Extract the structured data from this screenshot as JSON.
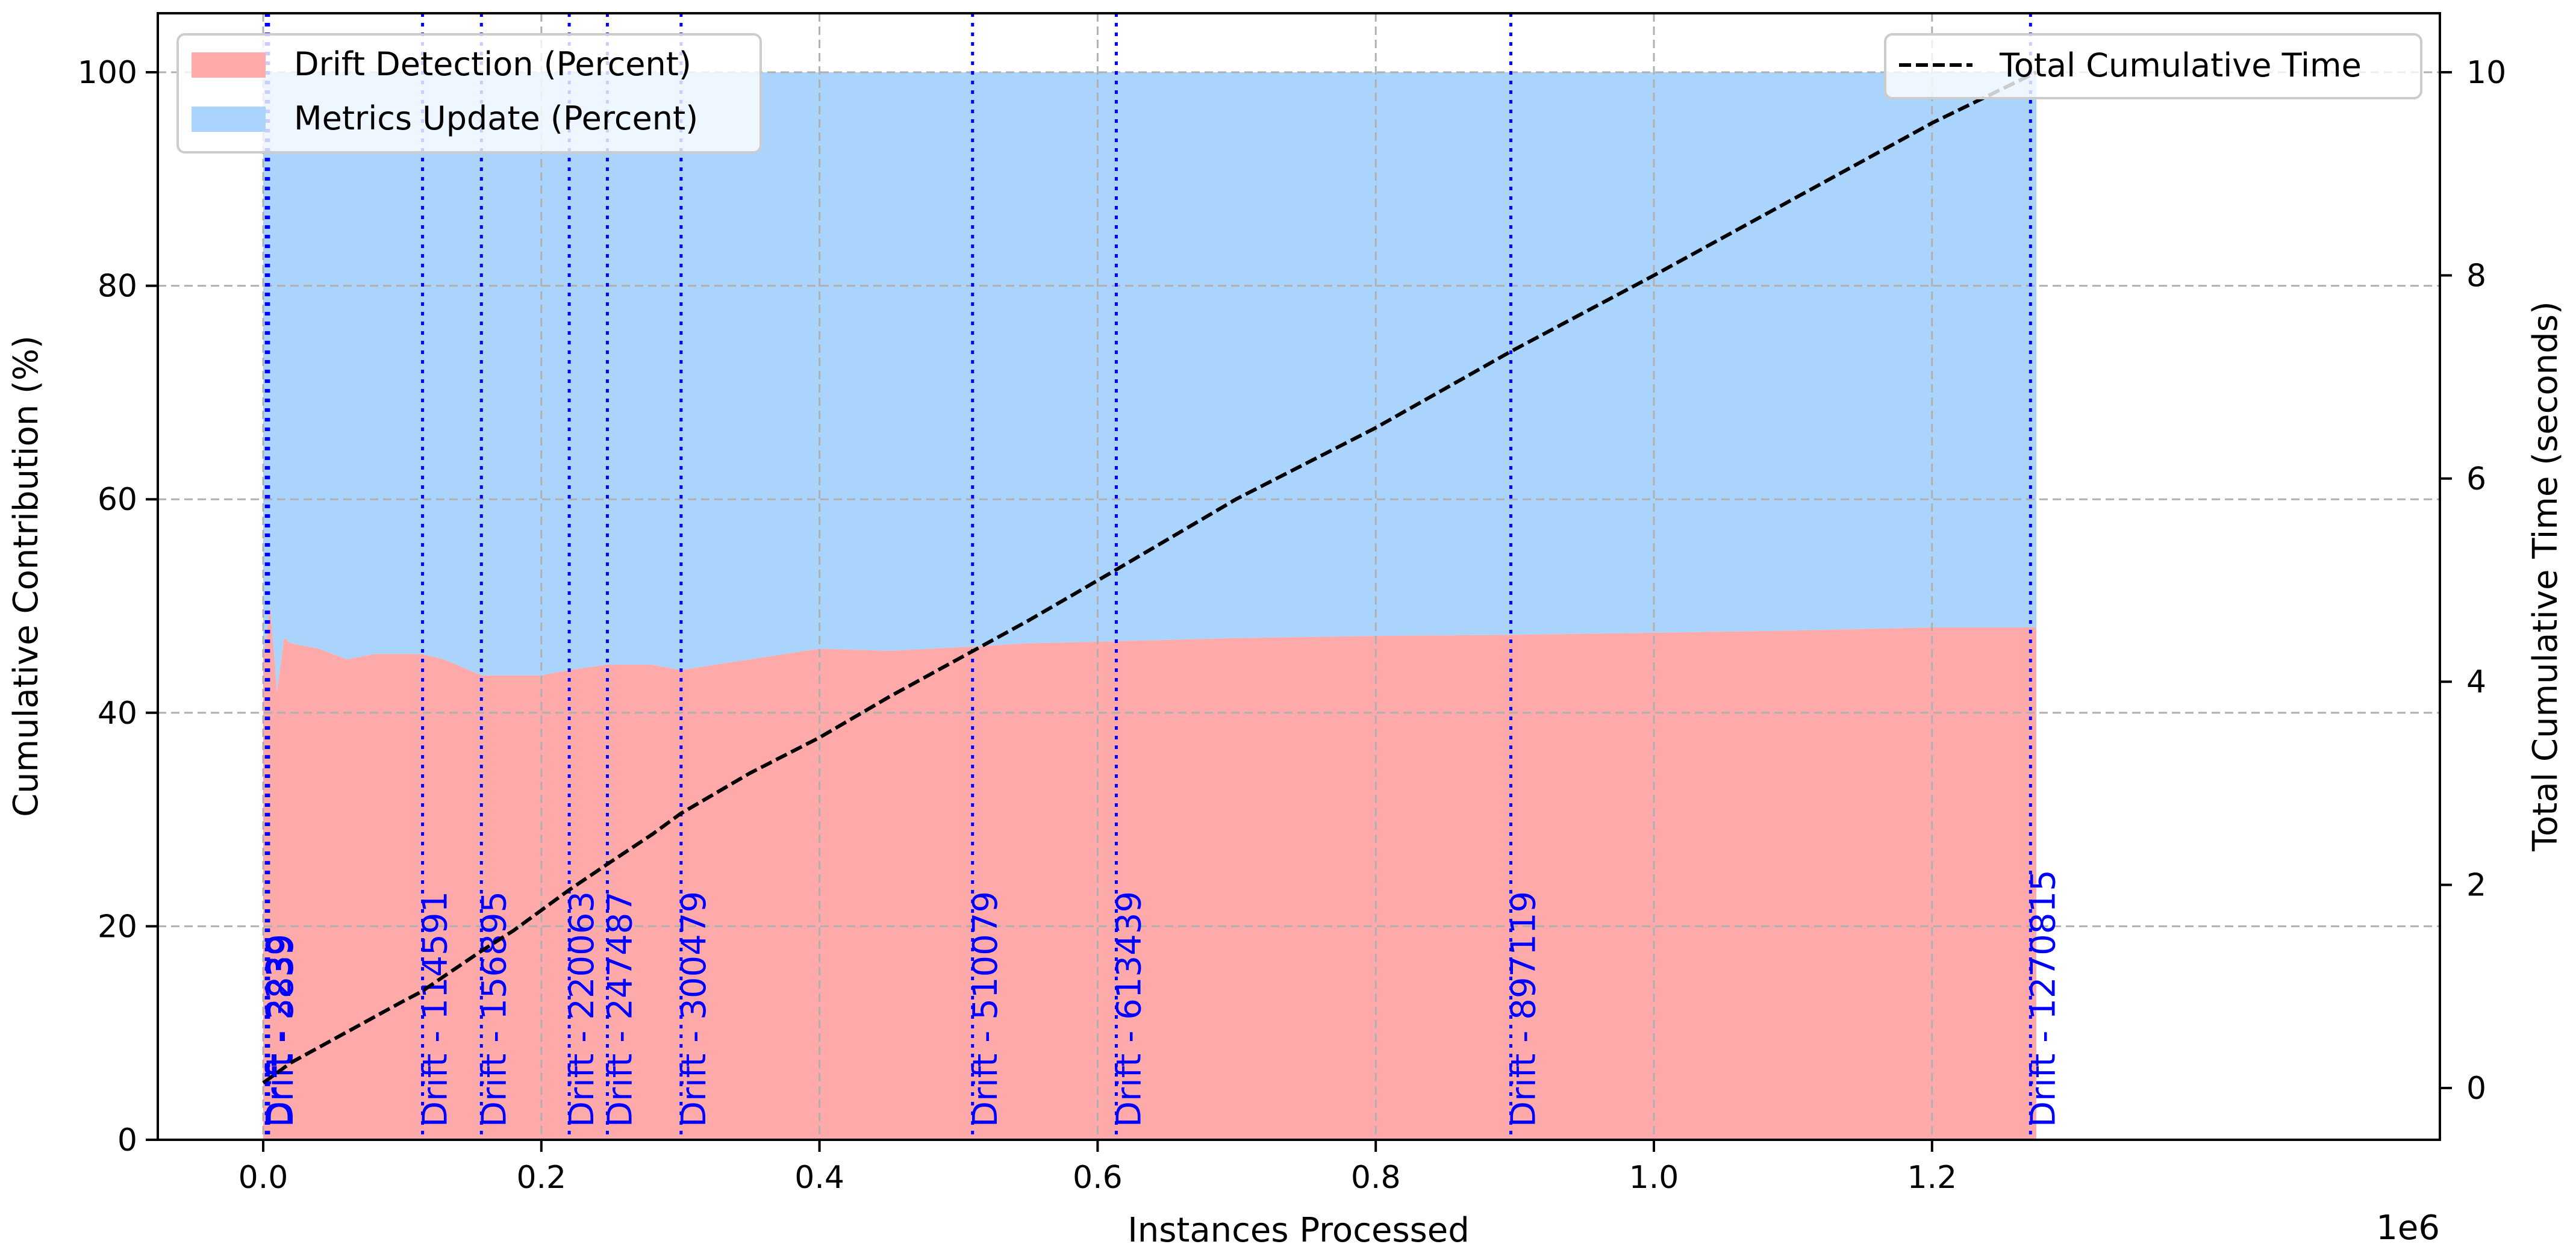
{
  "chart_data": {
    "type": "area",
    "title": "",
    "xlabel": "Instances Processed",
    "x_scale_note": "1e6",
    "ylabel_left": "Cumulative Contribution (%)",
    "ylabel_right": "Total Cumulative Time (seconds)",
    "xlim": [
      -0.065,
      1.34
    ],
    "ylim_left": [
      0,
      105
    ],
    "ylim_right": [
      -0.5,
      10.5
    ],
    "x_ticks": [
      "0.0",
      "0.2",
      "0.4",
      "0.6",
      "0.8",
      "1.0",
      "1.2"
    ],
    "y_left_ticks": [
      "0",
      "20",
      "40",
      "60",
      "80",
      "100"
    ],
    "y_right_ticks": [
      "0",
      "2",
      "4",
      "6",
      "8",
      "10"
    ],
    "grid": true,
    "legend_left": [
      {
        "label": "Drift Detection (Percent)",
        "color": "#ffaaaa"
      },
      {
        "label": "Metrics Update (Percent)",
        "color": "#aad4fc"
      }
    ],
    "legend_right": [
      {
        "label": "Total Cumulative Time",
        "style": "dashed",
        "color": "#000000"
      }
    ],
    "x": [
      0.0,
      0.005,
      0.01,
      0.015,
      0.02,
      0.04,
      0.06,
      0.08,
      0.1,
      0.114,
      0.13,
      0.157,
      0.18,
      0.2,
      0.22,
      0.247,
      0.28,
      0.3,
      0.35,
      0.4,
      0.45,
      0.51,
      0.55,
      0.613,
      0.7,
      0.8,
      0.897,
      1.0,
      1.1,
      1.2,
      1.275
    ],
    "series": [
      {
        "name": "Drift Detection (Percent)",
        "axis": "left",
        "color": "#ffaaaa",
        "values": [
          45,
          50,
          42,
          47,
          46.5,
          46,
          45,
          45.5,
          45.5,
          45.5,
          45,
          43.5,
          43.5,
          43.5,
          44,
          44.5,
          44.5,
          44,
          45,
          46,
          45.8,
          46.2,
          46.5,
          46.7,
          47,
          47.2,
          47.3,
          47.5,
          47.7,
          48,
          48
        ]
      },
      {
        "name": "Metrics Update (Percent)",
        "axis": "left",
        "color": "#aad4fc",
        "values": [
          55,
          50,
          58,
          53,
          53.5,
          54,
          55,
          54.5,
          54.5,
          54.5,
          55,
          56.5,
          56.5,
          56.5,
          56,
          55.5,
          55.5,
          56,
          55,
          54,
          54.2,
          53.8,
          53.5,
          53.3,
          53,
          52.8,
          52.7,
          52.5,
          52.3,
          52,
          52
        ]
      },
      {
        "name": "Total Cumulative Time",
        "axis": "right",
        "style": "dashed",
        "color": "#000000",
        "values": [
          0.05,
          0.1,
          0.15,
          0.2,
          0.25,
          0.4,
          0.55,
          0.7,
          0.85,
          0.95,
          1.1,
          1.35,
          1.55,
          1.75,
          1.95,
          2.2,
          2.5,
          2.7,
          3.1,
          3.45,
          3.85,
          4.3,
          4.6,
          5.1,
          5.8,
          6.5,
          7.25,
          8.0,
          8.75,
          9.5,
          10.0
        ]
      }
    ],
    "drift_markers": [
      {
        "x": 2239,
        "label": "Drift - 2239"
      },
      {
        "x": 3839,
        "label": "Drift - 3839"
      },
      {
        "x": 114591,
        "label": "Drift - 114591"
      },
      {
        "x": 156895,
        "label": "Drift - 156895"
      },
      {
        "x": 220063,
        "label": "Drift - 220063"
      },
      {
        "x": 247487,
        "label": "Drift - 247487"
      },
      {
        "x": 300479,
        "label": "Drift - 300479"
      },
      {
        "x": 510079,
        "label": "Drift - 510079"
      },
      {
        "x": 613439,
        "label": "Drift - 613439"
      },
      {
        "x": 897119,
        "label": "Drift - 897119"
      },
      {
        "x": 1270815,
        "label": "Drift - 1270815"
      }
    ],
    "drift_marker_color": "#0000ff"
  }
}
